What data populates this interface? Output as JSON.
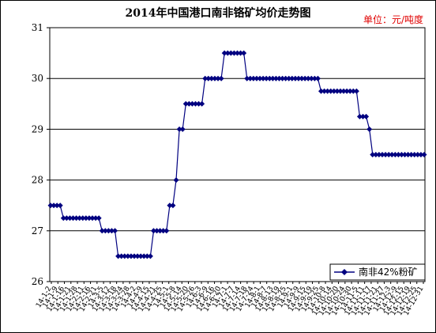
{
  "chart_data": {
    "type": "line",
    "title": "2014年中国港口南非铬矿均价走势图",
    "unit_label": "单位：元/吨度",
    "ylim": [
      26,
      31
    ],
    "yticks": [
      26,
      27,
      28,
      29,
      30,
      31
    ],
    "grid": true,
    "legend_position": "bottom-right",
    "series_color": "#000080",
    "series": [
      {
        "name": "南非42%粉矿",
        "values": [
          27.5,
          27.5,
          27.5,
          27.5,
          27.25,
          27.25,
          27.25,
          27.25,
          27.25,
          27.25,
          27.25,
          27.25,
          27.25,
          27.25,
          27.25,
          27.25,
          27.0,
          27.0,
          27.0,
          27.0,
          27.0,
          26.5,
          26.5,
          26.5,
          26.5,
          26.5,
          26.5,
          26.5,
          26.5,
          26.5,
          26.5,
          26.5,
          27.0,
          27.0,
          27.0,
          27.0,
          27.0,
          27.5,
          27.5,
          28.0,
          29.0,
          29.0,
          29.5,
          29.5,
          29.5,
          29.5,
          29.5,
          29.5,
          30.0,
          30.0,
          30.0,
          30.0,
          30.0,
          30.0,
          30.5,
          30.5,
          30.5,
          30.5,
          30.5,
          30.5,
          30.5,
          30.0,
          30.0,
          30.0,
          30.0,
          30.0,
          30.0,
          30.0,
          30.0,
          30.0,
          30.0,
          30.0,
          30.0,
          30.0,
          30.0,
          30.0,
          30.0,
          30.0,
          30.0,
          30.0,
          30.0,
          30.0,
          30.0,
          30.0,
          29.75,
          29.75,
          29.75,
          29.75,
          29.75,
          29.75,
          29.75,
          29.75,
          29.75,
          29.75,
          29.75,
          29.75,
          29.25,
          29.25,
          29.25,
          29.0,
          28.5,
          28.5,
          28.5,
          28.5,
          28.5,
          28.5,
          28.5,
          28.5,
          28.5,
          28.5,
          28.5,
          28.5,
          28.5,
          28.5,
          28.5,
          28.5,
          28.5
        ]
      }
    ],
    "x_tick_labels": [
      "14-1-2",
      "14-1-9",
      "14-1-16",
      "14-1-21",
      "14-1-28",
      "14-2-11",
      "14-2-16",
      "14-2-21",
      "14-3-5",
      "14-3-12",
      "14-3-18",
      "14-3-24",
      "14-3-28",
      "14-4-2",
      "14-4-9",
      "14-4-15",
      "14-4-21",
      "14-4-25",
      "14-5-1",
      "14-5-8",
      "14-5-14",
      "14-5-20",
      "14-5-26",
      "14-6-3",
      "14-6-9",
      "14-6-16",
      "14-6-20",
      "14-7-1",
      "14-7-7",
      "14-7-14",
      "14-7-18",
      "14-7-24",
      "14-8-1",
      "14-8-7",
      "14-8-13",
      "14-8-19",
      "14-8-25",
      "14-9-1",
      "14-9-9",
      "14-9-15",
      "14-9-19",
      "14-9-25",
      "14-10-8",
      "14-10-14",
      "14-10-20",
      "14-10-24",
      "14-10-30",
      "14-11-5",
      "14-11-11",
      "14-11-17",
      "14-11-21",
      "14-11-27",
      "14-12-3",
      "14-12-9",
      "14-12-15",
      "14-12-19",
      "14-12-25",
      "14-12-31"
    ]
  }
}
